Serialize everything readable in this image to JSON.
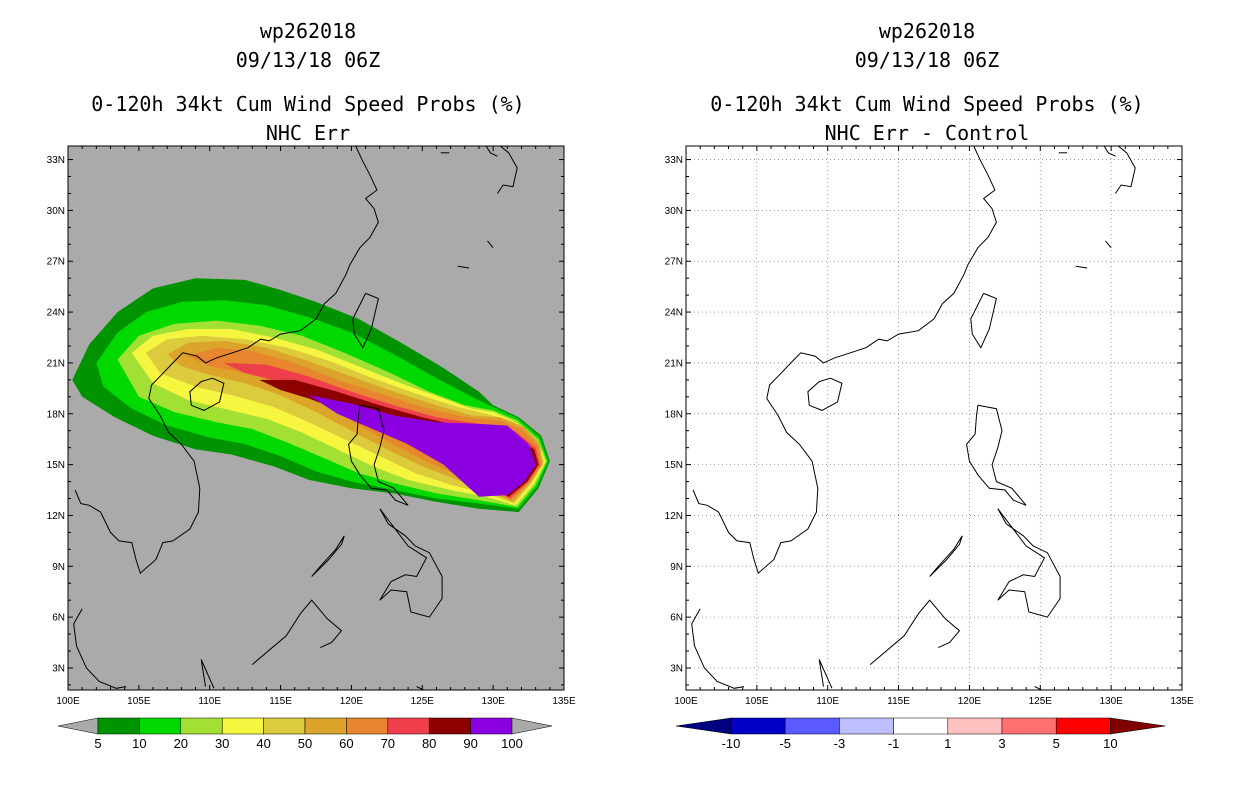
{
  "chart_data": [
    {
      "type": "map",
      "title": "wp262018",
      "subtitle": "09/13/18 06Z",
      "product": "0-120h 34kt Cum Wind Speed Probs (%)",
      "panel": "NHC Err",
      "background": "#aaaaaa",
      "lon_range": [
        100,
        135
      ],
      "lat_range": [
        1.7,
        33.8
      ],
      "lon_ticks": [
        "100E",
        "105E",
        "110E",
        "115E",
        "120E",
        "125E",
        "130E",
        "135E"
      ],
      "lat_ticks": [
        "3N",
        "6N",
        "9N",
        "12N",
        "15N",
        "18N",
        "21N",
        "24N",
        "27N",
        "30N",
        "33N"
      ],
      "colorbar": {
        "labels": [
          "5",
          "10",
          "20",
          "30",
          "40",
          "50",
          "60",
          "70",
          "80",
          "90",
          "100"
        ],
        "colors": [
          "#009300",
          "#00d900",
          "#a2e034",
          "#f6f640",
          "#dccb3c",
          "#dca42a",
          "#e7862f",
          "#ef3f4c",
          "#8c0000",
          "#8b00e1"
        ],
        "extend_color": "#aaaaaa"
      },
      "contours": [
        {
          "level": 5,
          "color": "#009300",
          "points": [
            [
              100.3,
              20.0
            ],
            [
              101.5,
              22.1
            ],
            [
              103.5,
              24.0
            ],
            [
              106.0,
              25.4
            ],
            [
              109.0,
              26.0
            ],
            [
              112.5,
              25.9
            ],
            [
              115.0,
              25.3
            ],
            [
              117.5,
              24.6
            ],
            [
              120.5,
              23.6
            ],
            [
              123.5,
              22.2
            ],
            [
              126.5,
              20.7
            ],
            [
              129.0,
              19.3
            ],
            [
              130.0,
              18.5
            ],
            [
              131.8,
              17.8
            ],
            [
              133.4,
              16.7
            ],
            [
              134.0,
              15.2
            ],
            [
              133.2,
              13.6
            ],
            [
              131.8,
              12.2
            ],
            [
              129.0,
              12.4
            ],
            [
              126.0,
              12.8
            ],
            [
              123.0,
              13.3
            ],
            [
              120.0,
              13.6
            ],
            [
              117.0,
              14.1
            ],
            [
              114.5,
              14.9
            ],
            [
              111.5,
              15.6
            ],
            [
              109.0,
              15.9
            ],
            [
              106.0,
              16.7
            ],
            [
              103.3,
              17.8
            ],
            [
              101.0,
              19.0
            ]
          ]
        },
        {
          "level": 10,
          "color": "#00d900",
          "points": [
            [
              102.0,
              21.0
            ],
            [
              103.5,
              22.8
            ],
            [
              105.5,
              24.0
            ],
            [
              108.0,
              24.6
            ],
            [
              111.0,
              24.7
            ],
            [
              114.0,
              24.4
            ],
            [
              117.0,
              23.7
            ],
            [
              120.0,
              22.8
            ],
            [
              123.0,
              21.5
            ],
            [
              126.0,
              20.1
            ],
            [
              128.5,
              19.0
            ],
            [
              130.0,
              18.4
            ],
            [
              131.8,
              17.7
            ],
            [
              133.3,
              16.6
            ],
            [
              133.9,
              15.2
            ],
            [
              133.1,
              13.7
            ],
            [
              131.8,
              12.4
            ],
            [
              129.0,
              12.7
            ],
            [
              126.0,
              13.0
            ],
            [
              123.0,
              13.5
            ],
            [
              120.0,
              14.0
            ],
            [
              117.5,
              14.6
            ],
            [
              115.0,
              15.5
            ],
            [
              112.5,
              16.2
            ],
            [
              110.0,
              16.6
            ],
            [
              107.0,
              17.3
            ],
            [
              104.5,
              18.3
            ],
            [
              102.5,
              19.6
            ]
          ]
        },
        {
          "level": 20,
          "color": "#a2e034",
          "points": [
            [
              103.5,
              21.2
            ],
            [
              105.0,
              22.6
            ],
            [
              107.5,
              23.3
            ],
            [
              110.5,
              23.5
            ],
            [
              113.5,
              23.2
            ],
            [
              116.5,
              22.6
            ],
            [
              119.5,
              21.6
            ],
            [
              122.5,
              20.5
            ],
            [
              125.5,
              19.3
            ],
            [
              128.0,
              18.5
            ],
            [
              130.0,
              18.2
            ],
            [
              131.7,
              17.6
            ],
            [
              133.2,
              16.5
            ],
            [
              133.8,
              15.2
            ],
            [
              133.0,
              13.8
            ],
            [
              131.7,
              12.5
            ],
            [
              129.0,
              12.9
            ],
            [
              126.0,
              13.3
            ],
            [
              123.0,
              13.9
            ],
            [
              120.5,
              14.5
            ],
            [
              118.0,
              15.4
            ],
            [
              115.5,
              16.3
            ],
            [
              113.0,
              17.1
            ],
            [
              110.5,
              17.5
            ],
            [
              107.5,
              18.1
            ],
            [
              105.0,
              19.0
            ]
          ]
        },
        {
          "level": 30,
          "color": "#f6f640",
          "points": [
            [
              104.5,
              21.6
            ],
            [
              106.0,
              22.6
            ],
            [
              108.5,
              23.0
            ],
            [
              111.5,
              23.0
            ],
            [
              114.5,
              22.5
            ],
            [
              117.5,
              21.8
            ],
            [
              120.5,
              20.8
            ],
            [
              123.5,
              19.8
            ],
            [
              126.5,
              18.9
            ],
            [
              128.5,
              18.3
            ],
            [
              130.0,
              18.1
            ],
            [
              131.6,
              17.5
            ],
            [
              133.1,
              16.4
            ],
            [
              133.7,
              15.2
            ],
            [
              132.9,
              13.9
            ],
            [
              131.6,
              12.6
            ],
            [
              129.5,
              13.1
            ],
            [
              127.0,
              13.5
            ],
            [
              124.0,
              14.1
            ],
            [
              121.5,
              14.9
            ],
            [
              119.0,
              15.9
            ],
            [
              116.5,
              16.9
            ],
            [
              114.0,
              17.7
            ],
            [
              111.5,
              18.2
            ],
            [
              108.5,
              18.8
            ],
            [
              106.0,
              19.8
            ]
          ]
        },
        {
          "level": 40,
          "color": "#dccb3c",
          "points": [
            [
              105.5,
              21.6
            ],
            [
              107.0,
              22.4
            ],
            [
              109.5,
              22.6
            ],
            [
              112.5,
              22.4
            ],
            [
              115.5,
              21.9
            ],
            [
              118.5,
              21.1
            ],
            [
              121.5,
              20.1
            ],
            [
              124.5,
              19.2
            ],
            [
              127.5,
              18.4
            ],
            [
              129.5,
              18.0
            ],
            [
              131.5,
              17.5
            ],
            [
              133.0,
              16.4
            ],
            [
              133.6,
              15.2
            ],
            [
              132.8,
              14.0
            ],
            [
              131.5,
              12.7
            ],
            [
              129.5,
              13.3
            ],
            [
              127.0,
              13.8
            ],
            [
              124.5,
              14.5
            ],
            [
              122.0,
              15.5
            ],
            [
              119.5,
              16.5
            ],
            [
              117.0,
              17.5
            ],
            [
              114.5,
              18.4
            ],
            [
              112.0,
              19.0
            ],
            [
              109.0,
              19.6
            ],
            [
              106.5,
              20.4
            ]
          ]
        },
        {
          "level": 50,
          "color": "#dca42a",
          "points": [
            [
              107.0,
              21.5
            ],
            [
              108.5,
              22.2
            ],
            [
              111.0,
              22.3
            ],
            [
              114.0,
              21.9
            ],
            [
              117.0,
              21.1
            ],
            [
              120.0,
              20.2
            ],
            [
              123.0,
              19.3
            ],
            [
              126.0,
              18.5
            ],
            [
              128.5,
              17.9
            ],
            [
              130.5,
              17.8
            ],
            [
              132.2,
              17.2
            ],
            [
              133.3,
              16.2
            ],
            [
              133.5,
              15.0
            ],
            [
              132.7,
              14.0
            ],
            [
              131.4,
              12.8
            ],
            [
              129.5,
              13.5
            ],
            [
              127.5,
              14.1
            ],
            [
              125.0,
              14.9
            ],
            [
              122.5,
              15.9
            ],
            [
              120.0,
              17.0
            ],
            [
              117.5,
              18.1
            ],
            [
              115.0,
              19.1
            ],
            [
              112.5,
              19.8
            ],
            [
              110.0,
              20.3
            ],
            [
              108.0,
              20.8
            ]
          ]
        },
        {
          "level": 60,
          "color": "#e7862f",
          "points": [
            [
              108.5,
              21.4
            ],
            [
              110.5,
              21.9
            ],
            [
              113.0,
              21.7
            ],
            [
              116.0,
              21.0
            ],
            [
              119.0,
              20.0
            ],
            [
              122.0,
              19.2
            ],
            [
              125.0,
              18.4
            ],
            [
              128.0,
              17.8
            ],
            [
              130.5,
              17.6
            ],
            [
              132.0,
              17.1
            ],
            [
              133.2,
              16.1
            ],
            [
              133.4,
              15.0
            ],
            [
              132.6,
              14.0
            ],
            [
              131.3,
              12.9
            ],
            [
              129.5,
              13.7
            ],
            [
              127.5,
              14.4
            ],
            [
              125.0,
              15.3
            ],
            [
              122.5,
              16.4
            ],
            [
              120.0,
              17.6
            ],
            [
              117.5,
              18.8
            ],
            [
              115.0,
              19.8
            ],
            [
              112.5,
              20.4
            ],
            [
              110.0,
              20.8
            ]
          ]
        },
        {
          "level": 70,
          "color": "#ef3f4c",
          "points": [
            [
              111.0,
              21.0
            ],
            [
              114.0,
              20.9
            ],
            [
              117.0,
              20.2
            ],
            [
              120.0,
              19.3
            ],
            [
              123.0,
              18.5
            ],
            [
              126.0,
              17.8
            ],
            [
              129.0,
              17.4
            ],
            [
              131.5,
              17.0
            ],
            [
              133.0,
              16.0
            ],
            [
              133.3,
              15.0
            ],
            [
              132.5,
              14.0
            ],
            [
              131.2,
              13.0
            ],
            [
              129.5,
              13.8
            ],
            [
              127.5,
              14.7
            ],
            [
              125.0,
              15.7
            ],
            [
              122.5,
              16.9
            ],
            [
              120.0,
              18.1
            ],
            [
              117.5,
              19.1
            ],
            [
              115.0,
              19.9
            ],
            [
              112.5,
              20.4
            ]
          ]
        },
        {
          "level": 80,
          "color": "#8c0000",
          "points": [
            [
              113.5,
              20.0
            ],
            [
              116.0,
              20.0
            ],
            [
              119.0,
              19.3
            ],
            [
              122.0,
              18.5
            ],
            [
              125.0,
              17.8
            ],
            [
              128.0,
              17.2
            ],
            [
              131.0,
              16.9
            ],
            [
              132.9,
              15.9
            ],
            [
              133.2,
              15.0
            ],
            [
              132.4,
              14.0
            ],
            [
              131.1,
              13.1
            ],
            [
              129.3,
              13.9
            ],
            [
              127.0,
              14.9
            ],
            [
              124.5,
              16.0
            ],
            [
              122.0,
              17.1
            ],
            [
              119.5,
              18.1
            ],
            [
              117.0,
              18.9
            ],
            [
              115.0,
              19.4
            ]
          ]
        },
        {
          "level": 90,
          "color": "#8b00e1",
          "points": [
            [
              117.0,
              19.1
            ],
            [
              120.0,
              18.6
            ],
            [
              123.0,
              17.9
            ],
            [
              126.0,
              17.5
            ],
            [
              129.0,
              17.4
            ],
            [
              131.0,
              17.3
            ],
            [
              132.5,
              16.2
            ],
            [
              133.0,
              15.0
            ],
            [
              132.2,
              14.0
            ],
            [
              131.0,
              13.2
            ],
            [
              129.0,
              13.1
            ],
            [
              126.5,
              15.0
            ],
            [
              124.0,
              16.2
            ],
            [
              121.5,
              17.1
            ],
            [
              119.0,
              18.0
            ]
          ]
        }
      ]
    },
    {
      "type": "map",
      "title": "wp262018",
      "subtitle": "09/13/18 06Z",
      "product": "0-120h 34kt Cum Wind Speed Probs (%)",
      "panel": "NHC Err - Control",
      "background": "#ffffff",
      "grid": true,
      "lon_range": [
        100,
        135
      ],
      "lat_range": [
        1.7,
        33.8
      ],
      "lon_ticks": [
        "100E",
        "105E",
        "110E",
        "115E",
        "120E",
        "125E",
        "130E",
        "135E"
      ],
      "lat_ticks": [
        "3N",
        "6N",
        "9N",
        "12N",
        "15N",
        "18N",
        "21N",
        "24N",
        "27N",
        "30N",
        "33N"
      ],
      "colorbar": {
        "labels": [
          "-10",
          "-5",
          "-3",
          "-1",
          "1",
          "3",
          "5",
          "10"
        ],
        "colors": [
          "#0000c8",
          "#5a5aff",
          "#bebeff",
          "#ffffff",
          "#ffc0c0",
          "#ff7070",
          "#ff0000"
        ],
        "left_extend_color": "#000080",
        "right_extend_color": "#800000"
      },
      "contours": []
    }
  ]
}
